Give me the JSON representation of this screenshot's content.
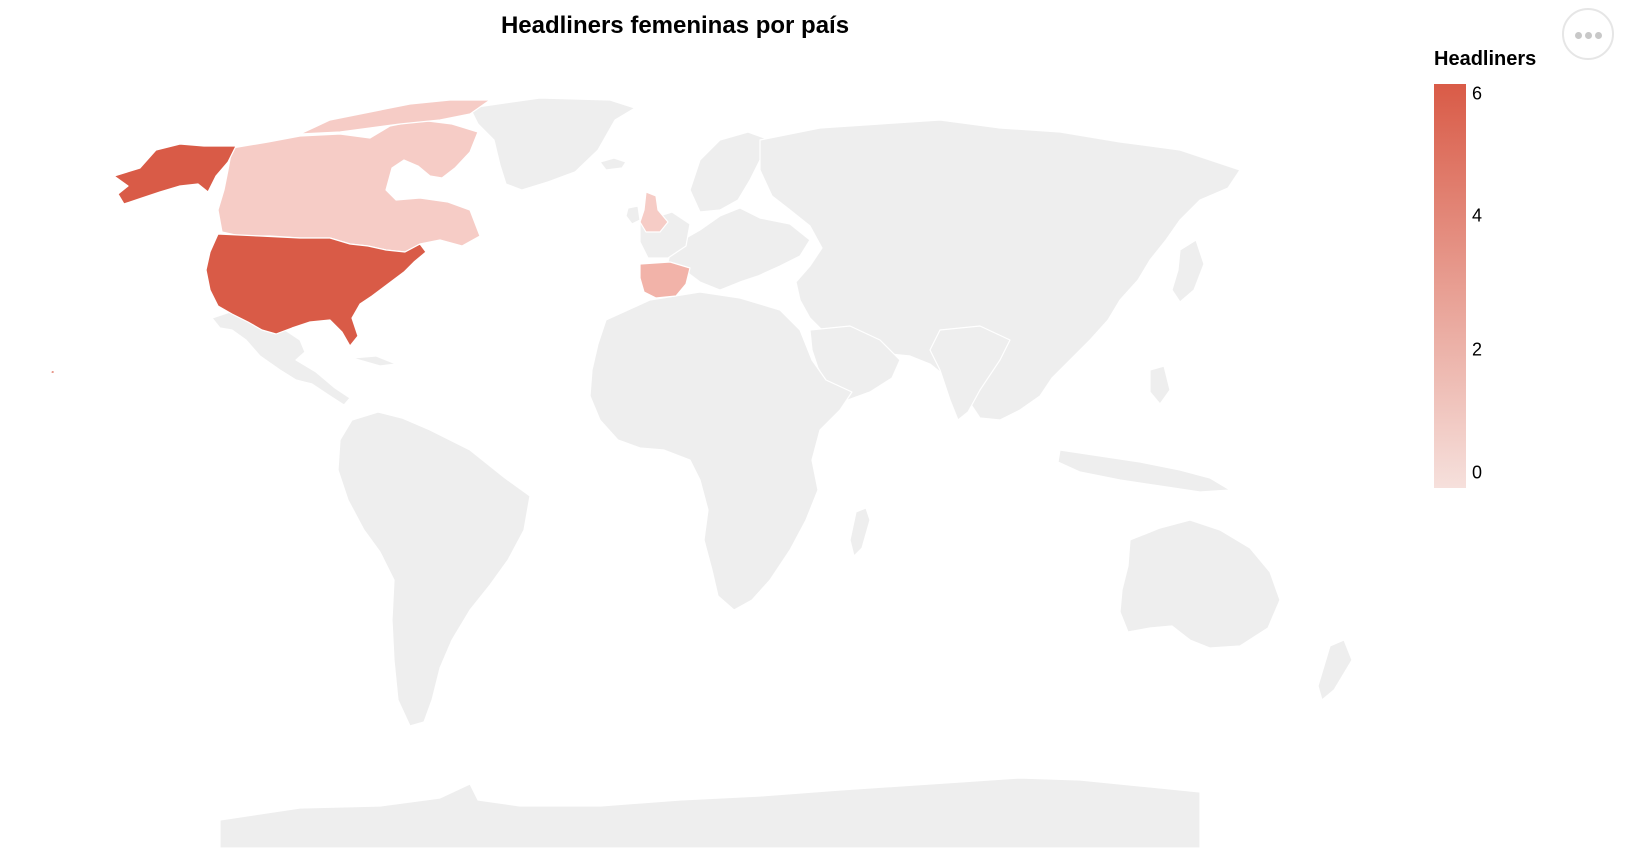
{
  "title": "Headliners femeninas por país",
  "menu": {
    "icon": "more-horizontal-icon"
  },
  "legend": {
    "title": "Headliners",
    "ticks": [
      "6",
      "4",
      "2",
      "0"
    ],
    "domain": [
      0,
      6
    ],
    "color_low": "#f6e0dc",
    "color_high": "#d95b47"
  },
  "colors": {
    "background_land": "#eeeeee",
    "border": "#ffffff"
  },
  "chart_data": {
    "type": "choropleth",
    "value_label": "Headliners",
    "domain": [
      0,
      6
    ],
    "regions": [
      {
        "name": "United States",
        "value": 6
      },
      {
        "name": "Canada",
        "value": 1
      },
      {
        "name": "United Kingdom",
        "value": 1
      },
      {
        "name": "Spain",
        "value": 2
      }
    ]
  }
}
